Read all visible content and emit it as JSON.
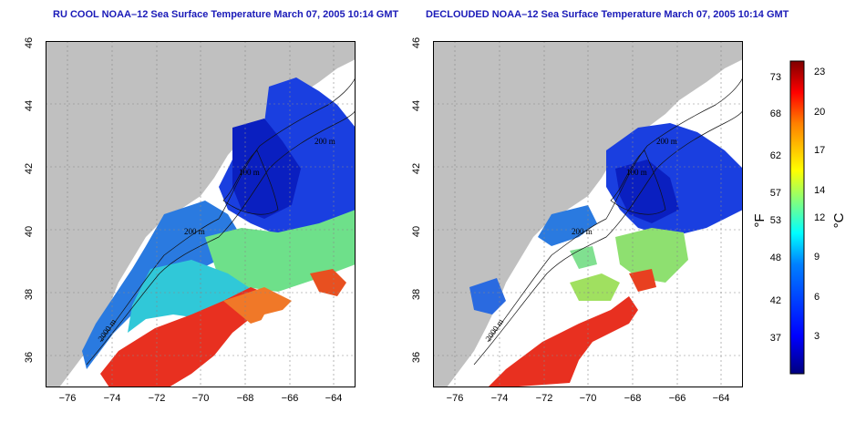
{
  "left_panel": {
    "title": "RU COOL NOAA–12 Sea Surface Temperature March 07, 2005 10:14 GMT"
  },
  "right_panel": {
    "title": "DECLOUDED NOAA–12 Sea Surface Temperature March 07, 2005 10:14 GMT"
  },
  "axes": {
    "x_ticks": [
      "−76",
      "−74",
      "−72",
      "−70",
      "−68",
      "−66",
      "−64"
    ],
    "y_ticks": [
      "36",
      "38",
      "40",
      "42",
      "44",
      "46"
    ],
    "lon_range": [
      -77,
      -63
    ],
    "lat_range": [
      35,
      46
    ]
  },
  "contour_labels": {
    "left": [
      "200 m",
      "2000 m",
      "100 m",
      "200 m"
    ],
    "right": [
      "200 m",
      "2000 m",
      "100 m",
      "200 m"
    ]
  },
  "colorbar": {
    "fahrenheit_ticks": [
      "73",
      "68",
      "62",
      "57",
      "53",
      "48",
      "42",
      "37"
    ],
    "celsius_ticks": [
      "23",
      "20",
      "17",
      "14",
      "12",
      "9",
      "6",
      "3"
    ],
    "fahrenheit_unit": "°F",
    "celsius_unit": "°C",
    "colors": [
      "#00007f",
      "#0000ff",
      "#0080ff",
      "#00ffff",
      "#80ff80",
      "#ffff00",
      "#ff8000",
      "#ff0000",
      "#7f0000"
    ]
  },
  "colors": {
    "land": "#c0c0c0",
    "title": "#1a1ab8"
  }
}
